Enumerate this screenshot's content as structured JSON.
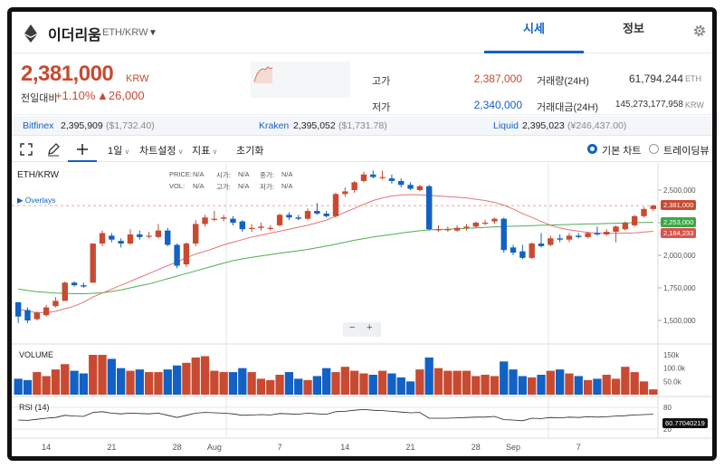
{
  "header": {
    "coin_name": "이더리움",
    "pair": "ETH/KRW",
    "tabs": [
      "시세",
      "정보"
    ]
  },
  "price_panel": {
    "price": "2,381,000",
    "unit": "KRW",
    "change_label": "전일대비",
    "change_pct": "+1.10%",
    "change_amount": "▲26,000",
    "high_label": "고가",
    "high_value": "2,387,000",
    "low_label": "저가",
    "low_value": "2,340,000",
    "volume_label": "거래량(24H)",
    "volume_value": "61,794.244",
    "volume_unit": "ETH",
    "amount_label": "거래대금(24H)",
    "amount_value": "145,273,177,958",
    "amount_unit": "KRW"
  },
  "exchanges": [
    {
      "name": "Bitfinex",
      "price": "2,395,909",
      "sub": "($1,732.40)"
    },
    {
      "name": "Kraken",
      "price": "2,395,052",
      "sub": "($1,731.78)"
    },
    {
      "name": "Liquid",
      "price": "2,395,023",
      "sub": "(¥246,437.00)"
    }
  ],
  "toolbar": {
    "interval": "1일",
    "chart_settings": "차트설정",
    "indicators": "지표",
    "reset": "초기화",
    "basic_chart": "기본 차트",
    "tradingview": "트레이딩뷰"
  },
  "chart": {
    "symbol": "ETH/KRW",
    "overlays": "Overlays",
    "ohlc_labels": {
      "price": "PRICE:",
      "vol": "VOL:",
      "open": "시가:",
      "high": "고가:",
      "close": "종가:",
      "low": "저가:",
      "na": "N/A"
    },
    "volume_label": "VOLUME",
    "rsi_label": "RSI (14)",
    "y_ticks": [
      "2,500,000",
      "2,250,000",
      "2,000,000",
      "1,750,000",
      "1,500,000"
    ],
    "vol_ticks": [
      "150k",
      "100.0k",
      "50.0k"
    ],
    "rsi_ticks": [
      "80",
      "20"
    ],
    "x_ticks": [
      "14",
      "21",
      "28",
      "Aug",
      "7",
      "14",
      "21",
      "28",
      "Sep",
      "7"
    ],
    "tags": {
      "last": "2,381,000",
      "ma_green": "2,253,000",
      "ma_red": "2,184,233",
      "rsi": "60.77040219"
    },
    "zoom": [
      "−",
      "+"
    ]
  },
  "colors": {
    "up": "#c84a31",
    "down": "#1261c4",
    "ma_long": "#4caf50",
    "ma_short": "#e57373"
  },
  "chart_data": {
    "type": "candlestick",
    "candles": [
      [
        1640000,
        1530000,
        1640000,
        1480000
      ],
      [
        1580000,
        1500000,
        1600000,
        1480000
      ],
      [
        1510000,
        1560000,
        1570000,
        1500000
      ],
      [
        1540000,
        1600000,
        1620000,
        1530000
      ],
      [
        1610000,
        1650000,
        1680000,
        1600000
      ],
      [
        1650000,
        1790000,
        1800000,
        1650000
      ],
      [
        1790000,
        1770000,
        1800000,
        1760000
      ],
      [
        1770000,
        1760000,
        1790000,
        1750000
      ],
      [
        1790000,
        2090000,
        2090000,
        1790000
      ],
      [
        2090000,
        2170000,
        2190000,
        2070000
      ],
      [
        2150000,
        2120000,
        2170000,
        2100000
      ],
      [
        2110000,
        2090000,
        2130000,
        2060000
      ],
      [
        2090000,
        2160000,
        2200000,
        2080000
      ],
      [
        2160000,
        2140000,
        2190000,
        2120000
      ],
      [
        2150000,
        2150000,
        2180000,
        2130000
      ],
      [
        2140000,
        2190000,
        2240000,
        2130000
      ],
      [
        2190000,
        2080000,
        2210000,
        2070000
      ],
      [
        2080000,
        1920000,
        2090000,
        1900000
      ],
      [
        1930000,
        2090000,
        2100000,
        1910000
      ],
      [
        2090000,
        2240000,
        2270000,
        2070000
      ],
      [
        2240000,
        2290000,
        2310000,
        2220000
      ],
      [
        2280000,
        2280000,
        2340000,
        2260000
      ],
      [
        2280000,
        2290000,
        2310000,
        2260000
      ],
      [
        2280000,
        2250000,
        2300000,
        2230000
      ],
      [
        2260000,
        2200000,
        2270000,
        2180000
      ],
      [
        2210000,
        2210000,
        2240000,
        2180000
      ],
      [
        2210000,
        2220000,
        2250000,
        2190000
      ],
      [
        2210000,
        2210000,
        2230000,
        2190000
      ],
      [
        2230000,
        2310000,
        2320000,
        2220000
      ],
      [
        2310000,
        2290000,
        2330000,
        2270000
      ],
      [
        2290000,
        2280000,
        2310000,
        2270000
      ],
      [
        2280000,
        2340000,
        2360000,
        2270000
      ],
      [
        2340000,
        2320000,
        2400000,
        2310000
      ],
      [
        2320000,
        2300000,
        2340000,
        2290000
      ],
      [
        2300000,
        2470000,
        2480000,
        2290000
      ],
      [
        2470000,
        2490000,
        2520000,
        2450000
      ],
      [
        2500000,
        2560000,
        2570000,
        2480000
      ],
      [
        2570000,
        2620000,
        2640000,
        2560000
      ],
      [
        2620000,
        2600000,
        2650000,
        2590000
      ],
      [
        2600000,
        2600000,
        2650000,
        2580000
      ],
      [
        2590000,
        2570000,
        2620000,
        2550000
      ],
      [
        2570000,
        2540000,
        2590000,
        2520000
      ],
      [
        2540000,
        2510000,
        2560000,
        2500000
      ],
      [
        2500000,
        2530000,
        2540000,
        2490000
      ],
      [
        2530000,
        2200000,
        2540000,
        2190000
      ],
      [
        2200000,
        2200000,
        2230000,
        2180000
      ],
      [
        2200000,
        2200000,
        2220000,
        2180000
      ],
      [
        2190000,
        2210000,
        2230000,
        2180000
      ],
      [
        2210000,
        2220000,
        2240000,
        2190000
      ],
      [
        2220000,
        2250000,
        2260000,
        2210000
      ],
      [
        2250000,
        2250000,
        2270000,
        2230000
      ],
      [
        2260000,
        2280000,
        2290000,
        2240000
      ],
      [
        2280000,
        2040000,
        2290000,
        2020000
      ],
      [
        2060000,
        2020000,
        2080000,
        2000000
      ],
      [
        2030000,
        1980000,
        2080000,
        1970000
      ],
      [
        1980000,
        2090000,
        2100000,
        1970000
      ],
      [
        2090000,
        2070000,
        2170000,
        2060000
      ],
      [
        2080000,
        2130000,
        2150000,
        2070000
      ],
      [
        2130000,
        2120000,
        2160000,
        2100000
      ],
      [
        2120000,
        2150000,
        2170000,
        2100000
      ],
      [
        2150000,
        2140000,
        2170000,
        2130000
      ],
      [
        2140000,
        2170000,
        2180000,
        2130000
      ],
      [
        2170000,
        2160000,
        2220000,
        2150000
      ],
      [
        2160000,
        2180000,
        2200000,
        2150000
      ],
      [
        2180000,
        2220000,
        2230000,
        2100000
      ],
      [
        2200000,
        2250000,
        2260000,
        2190000
      ],
      [
        2230000,
        2300000,
        2310000,
        2220000
      ],
      [
        2300000,
        2355000,
        2370000,
        2290000
      ],
      [
        2355000,
        2381000,
        2387000,
        2340000
      ]
    ],
    "ma_long": [
      1740000,
      1730000,
      1720000,
      1715000,
      1710000,
      1708000,
      1705000,
      1705000,
      1708000,
      1712000,
      1722000,
      1735000,
      1750000,
      1765000,
      1780000,
      1800000,
      1820000,
      1840000,
      1860000,
      1880000,
      1900000,
      1920000,
      1940000,
      1958000,
      1972000,
      1985000,
      1995000,
      2005000,
      2015000,
      2025000,
      2035000,
      2045000,
      2058000,
      2070000,
      2085000,
      2100000,
      2115000,
      2128000,
      2140000,
      2150000,
      2160000,
      2170000,
      2180000,
      2188000,
      2195000,
      2198000,
      2200000,
      2203000,
      2206000,
      2210000,
      2214000,
      2218000,
      2221000,
      2223000,
      2225000,
      2228000,
      2230000,
      2232000,
      2234000,
      2236000,
      2238000,
      2240000,
      2242000,
      2244000,
      2246000,
      2248000,
      2250000,
      2252000,
      2253000
    ],
    "ma_short": [
      1590000,
      1570000,
      1560000,
      1560000,
      1570000,
      1590000,
      1610000,
      1640000,
      1680000,
      1710000,
      1740000,
      1770000,
      1800000,
      1830000,
      1860000,
      1890000,
      1920000,
      1950000,
      1980000,
      2010000,
      2030000,
      2055000,
      2080000,
      2100000,
      2120000,
      2140000,
      2155000,
      2170000,
      2185000,
      2200000,
      2215000,
      2230000,
      2250000,
      2270000,
      2300000,
      2330000,
      2360000,
      2390000,
      2420000,
      2440000,
      2455000,
      2462000,
      2465000,
      2464000,
      2460000,
      2455000,
      2450000,
      2445000,
      2440000,
      2430000,
      2420000,
      2405000,
      2385000,
      2355000,
      2320000,
      2290000,
      2260000,
      2230000,
      2210000,
      2195000,
      2185000,
      2175000,
      2170000,
      2168000,
      2168000,
      2170000,
      2172000,
      2178000,
      2184233
    ],
    "volume": [
      60,
      55,
      85,
      70,
      95,
      115,
      90,
      80,
      150,
      150,
      135,
      100,
      90,
      95,
      85,
      85,
      95,
      110,
      120,
      140,
      145,
      90,
      85,
      85,
      100,
      85,
      60,
      55,
      75,
      85,
      60,
      55,
      70,
      100,
      85,
      105,
      90,
      80,
      75,
      90,
      80,
      65,
      50,
      95,
      140,
      100,
      90,
      90,
      90,
      70,
      75,
      70,
      125,
      95,
      70,
      65,
      75,
      90,
      95,
      80,
      70,
      55,
      60,
      75,
      60,
      105,
      85,
      50,
      20
    ],
    "rsi": [
      45,
      44,
      47,
      50,
      52,
      58,
      56,
      55,
      66,
      68,
      64,
      62,
      64,
      63,
      62,
      64,
      58,
      52,
      58,
      64,
      66,
      65,
      64,
      62,
      58,
      59,
      60,
      59,
      63,
      62,
      61,
      64,
      62,
      61,
      68,
      69,
      72,
      74,
      72,
      71,
      69,
      67,
      65,
      66,
      50,
      50,
      50,
      51,
      52,
      53,
      53,
      55,
      46,
      45,
      43,
      50,
      49,
      52,
      51,
      53,
      52,
      54,
      53,
      54,
      56,
      57,
      59,
      60,
      61
    ]
  }
}
